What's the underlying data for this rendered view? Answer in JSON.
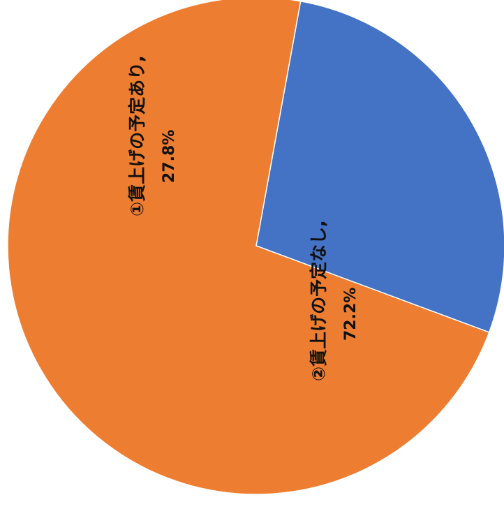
{
  "chart_data": {
    "type": "pie",
    "start_angle_deg": 10.3,
    "direction": "clockwise",
    "slices": [
      {
        "label": "①賃上げの予定あり,",
        "value": 27.8,
        "value_label": "27.8%",
        "color": "#4472C4"
      },
      {
        "label": "②賃上げの予定なし,",
        "value": 72.2,
        "value_label": "72.2%",
        "color": "#ED7D31"
      }
    ]
  }
}
